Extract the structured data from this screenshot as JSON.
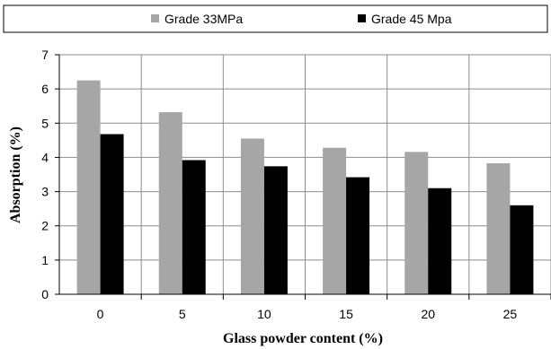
{
  "chart_data": {
    "type": "bar",
    "xlabel": "Glass powder content (%)",
    "ylabel": "Absorption (%)",
    "categories": [
      "0",
      "5",
      "10",
      "15",
      "20",
      "25"
    ],
    "series": [
      {
        "name": "Grade 33MPa",
        "values": [
          6.25,
          5.32,
          4.55,
          4.28,
          4.16,
          3.83
        ],
        "color": "#a6a6a6"
      },
      {
        "name": "Grade 45 Mpa",
        "values": [
          4.68,
          3.92,
          3.74,
          3.42,
          3.1,
          2.6
        ],
        "color": "#000000"
      }
    ],
    "ylim": [
      0,
      7
    ],
    "yticks": [
      "0",
      "1",
      "2",
      "3",
      "4",
      "5",
      "6",
      "7"
    ],
    "grid": true,
    "legend_position": "top"
  }
}
